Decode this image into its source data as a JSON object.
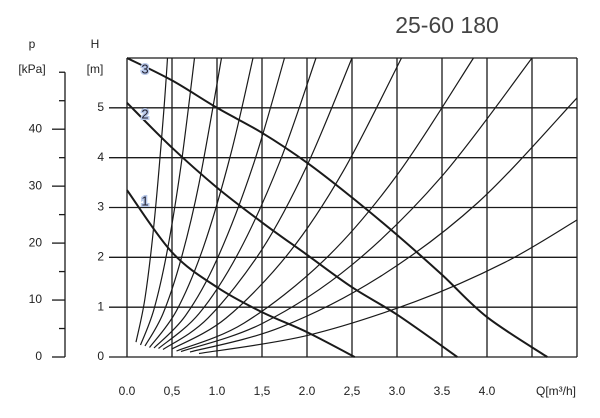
{
  "chart_data": {
    "type": "line",
    "title": "25-60 180",
    "x_label": "Q[m³/h]",
    "y_label": "H",
    "y_unit": "[m]",
    "y2_label": "p",
    "y2_unit": "[kPa]",
    "xlim": [
      0,
      5
    ],
    "ylim": [
      0,
      6
    ],
    "y2lim": [
      0,
      52.5
    ],
    "xticks": [
      {
        "value": 0,
        "label": "0.0"
      },
      {
        "value": 0.5,
        "label": "0,5"
      },
      {
        "value": 1,
        "label": "1.0"
      },
      {
        "value": 1.5,
        "label": "1,5"
      },
      {
        "value": 2,
        "label": "2.0"
      },
      {
        "value": 2.5,
        "label": "2,5"
      },
      {
        "value": 3,
        "label": "3.0"
      },
      {
        "value": 3.5,
        "label": "3.5"
      },
      {
        "value": 4,
        "label": "4.0"
      }
    ],
    "xgrid": [
      4.5,
      5
    ],
    "yticks": [
      0,
      1,
      2,
      3,
      4,
      5
    ],
    "y2ticks": [
      0,
      10,
      20,
      30,
      40
    ],
    "y2minor": [
      5,
      15,
      25,
      35,
      45,
      50
    ],
    "grid": true,
    "series": [
      {
        "name": "1",
        "color": "#1a1a1a",
        "x": [
          0,
          0.5,
          1,
          1.5,
          2,
          2.53
        ],
        "values": [
          3.35,
          2.1,
          1.4,
          0.9,
          0.5,
          0
        ]
      },
      {
        "name": "2",
        "color": "#1a1a1a",
        "x": [
          0,
          0.5,
          1,
          1.5,
          2,
          2.5,
          3,
          3.67
        ],
        "values": [
          5.1,
          4.2,
          3.4,
          2.7,
          2.05,
          1.4,
          0.85,
          0
        ]
      },
      {
        "name": "3",
        "color": "#1a1a1a",
        "x": [
          0,
          0.5,
          1,
          1.5,
          2,
          2.5,
          3,
          3.5,
          4,
          4.67
        ],
        "values": [
          6,
          5.55,
          5,
          4.5,
          3.9,
          3.2,
          2.45,
          1.65,
          0.8,
          0
        ]
      },
      {
        "color": "#1a1a1a",
        "x": [
          0.1,
          0.2,
          0.3,
          0.4,
          0.45
        ],
        "values": [
          0.3,
          1.18,
          2.67,
          4.74,
          6
        ]
      },
      {
        "color": "#1a1a1a",
        "x": [
          0.15,
          0.3,
          0.45,
          0.6,
          0.75
        ],
        "values": [
          0.24,
          0.96,
          2.16,
          3.84,
          6
        ]
      },
      {
        "color": "#1a1a1a",
        "x": [
          0.2,
          0.4,
          0.6,
          0.8,
          1.05
        ],
        "values": [
          0.22,
          0.87,
          1.96,
          3.48,
          6
        ]
      },
      {
        "color": "#1a1a1a",
        "x": [
          0.25,
          0.55,
          0.85,
          1.15,
          1.4
        ],
        "values": [
          0.19,
          0.93,
          2.21,
          4.05,
          6
        ]
      },
      {
        "color": "#1a1a1a",
        "x": [
          0.3,
          0.65,
          1,
          1.4,
          1.75
        ],
        "values": [
          0.18,
          0.83,
          1.96,
          3.84,
          6
        ]
      },
      {
        "color": "#1a1a1a",
        "x": [
          0.35,
          0.8,
          1.25,
          1.7,
          2.1
        ],
        "values": [
          0.17,
          0.87,
          2.13,
          3.93,
          6
        ]
      },
      {
        "color": "#1a1a1a",
        "x": [
          0.4,
          0.9,
          1.5,
          2,
          2.5
        ],
        "values": [
          0.15,
          0.78,
          2.16,
          3.84,
          6
        ]
      },
      {
        "color": "#1a1a1a",
        "x": [
          0.5,
          1.1,
          1.8,
          2.4,
          3.05
        ],
        "values": [
          0.16,
          0.78,
          2.09,
          3.72,
          6
        ]
      },
      {
        "color": "#1a1a1a",
        "x": [
          0.55,
          1.3,
          2.2,
          3,
          3.85
        ],
        "values": [
          0.12,
          0.68,
          1.96,
          3.65,
          6
        ]
      },
      {
        "color": "#1a1a1a",
        "x": [
          0.6,
          1.5,
          2.5,
          3.5,
          4.5
        ],
        "values": [
          0.11,
          0.67,
          1.85,
          3.63,
          6
        ]
      },
      {
        "color": "#1a1a1a",
        "x": [
          0.7,
          1.7,
          2.8,
          3.9,
          5
        ],
        "values": [
          0.1,
          0.59,
          1.6,
          3.1,
          5.2
        ]
      },
      {
        "color": "#1a1a1a",
        "x": [
          0.8,
          2,
          3.2,
          4.2,
          5
        ],
        "values": [
          0.07,
          0.43,
          1.11,
          1.9,
          2.75
        ]
      }
    ]
  }
}
